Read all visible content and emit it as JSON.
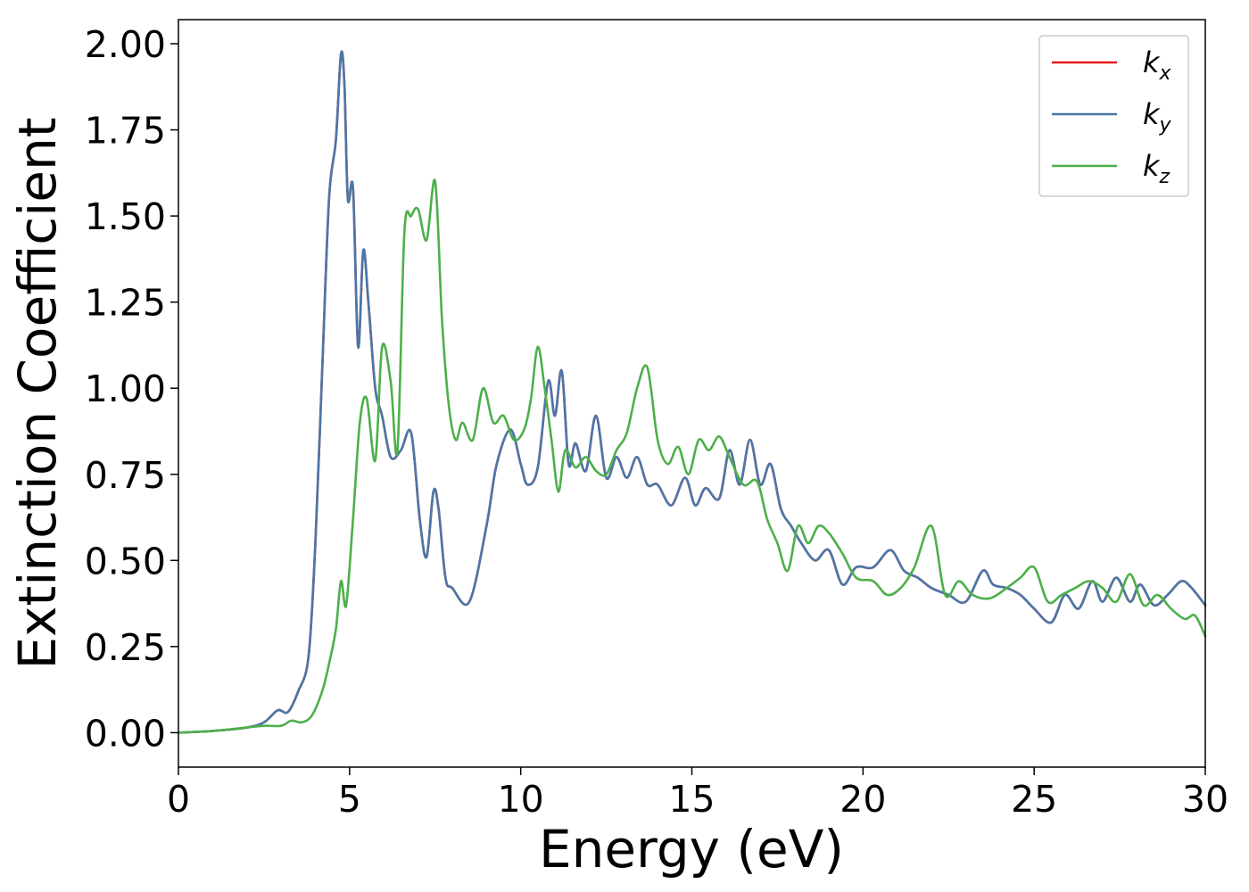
{
  "chart_data": {
    "type": "line",
    "xlabel": "Energy (eV)",
    "ylabel": "Extinction Coefficient",
    "xlim": [
      0,
      30
    ],
    "ylim": [
      -0.1,
      2.07
    ],
    "xticks": [
      0,
      5,
      10,
      15,
      20,
      25,
      30
    ],
    "xtick_labels": [
      "0",
      "5",
      "10",
      "15",
      "20",
      "25",
      "30"
    ],
    "yticks": [
      0.0,
      0.25,
      0.5,
      0.75,
      1.0,
      1.25,
      1.5,
      1.75,
      2.0
    ],
    "ytick_labels": [
      "0.00",
      "0.25",
      "0.50",
      "0.75",
      "1.00",
      "1.25",
      "1.50",
      "1.75",
      "2.00"
    ],
    "grid": false,
    "legend": "top-right",
    "series": [
      {
        "name": "k",
        "subscript": "x",
        "color": "#e41a1c",
        "x": [
          0,
          1,
          2,
          2.5,
          2.9,
          3.2,
          3.5,
          3.8,
          4.0,
          4.2,
          4.4,
          4.6,
          4.75,
          4.85,
          4.95,
          5.1,
          5.25,
          5.4,
          5.55,
          5.75,
          5.95,
          6.2,
          6.5,
          6.8,
          7.05,
          7.25,
          7.45,
          7.6,
          7.8,
          8.0,
          8.5,
          9.0,
          9.3,
          9.7,
          10.0,
          10.2,
          10.5,
          10.8,
          11.0,
          11.2,
          11.4,
          11.6,
          11.9,
          12.2,
          12.5,
          12.8,
          13.1,
          13.4,
          13.7,
          14.0,
          14.4,
          14.8,
          15.1,
          15.4,
          15.8,
          16.1,
          16.4,
          16.7,
          17.0,
          17.3,
          17.6,
          17.9,
          18.2,
          18.6,
          19.0,
          19.4,
          19.8,
          20.3,
          20.8,
          21.2,
          21.6,
          22.0,
          22.5,
          23.0,
          23.5,
          23.8,
          24.2,
          24.6,
          25.0,
          25.5,
          25.9,
          26.3,
          26.7,
          27.0,
          27.4,
          27.8,
          28.1,
          28.5,
          28.9,
          29.3,
          29.6,
          30.0
        ],
        "y": [
          0.0,
          0.005,
          0.015,
          0.03,
          0.065,
          0.06,
          0.12,
          0.22,
          0.55,
          1.05,
          1.55,
          1.72,
          1.97,
          1.88,
          1.55,
          1.58,
          1.12,
          1.4,
          1.25,
          1.0,
          0.92,
          0.8,
          0.82,
          0.87,
          0.62,
          0.51,
          0.7,
          0.65,
          0.45,
          0.42,
          0.38,
          0.6,
          0.78,
          0.88,
          0.78,
          0.72,
          0.77,
          1.02,
          0.92,
          1.05,
          0.78,
          0.84,
          0.76,
          0.92,
          0.74,
          0.8,
          0.74,
          0.8,
          0.72,
          0.72,
          0.66,
          0.74,
          0.66,
          0.71,
          0.68,
          0.82,
          0.72,
          0.85,
          0.72,
          0.78,
          0.65,
          0.6,
          0.55,
          0.5,
          0.53,
          0.43,
          0.48,
          0.48,
          0.53,
          0.47,
          0.45,
          0.42,
          0.4,
          0.38,
          0.47,
          0.43,
          0.42,
          0.4,
          0.36,
          0.32,
          0.4,
          0.36,
          0.44,
          0.38,
          0.45,
          0.38,
          0.43,
          0.37,
          0.4,
          0.44,
          0.42,
          0.37
        ]
      },
      {
        "name": "k",
        "subscript": "y",
        "color": "#4a77a8",
        "x": [
          0,
          1,
          2,
          2.5,
          2.9,
          3.2,
          3.5,
          3.8,
          4.0,
          4.2,
          4.4,
          4.6,
          4.75,
          4.85,
          4.95,
          5.1,
          5.25,
          5.4,
          5.55,
          5.75,
          5.95,
          6.2,
          6.5,
          6.8,
          7.05,
          7.25,
          7.45,
          7.6,
          7.8,
          8.0,
          8.5,
          9.0,
          9.3,
          9.7,
          10.0,
          10.2,
          10.5,
          10.8,
          11.0,
          11.2,
          11.4,
          11.6,
          11.9,
          12.2,
          12.5,
          12.8,
          13.1,
          13.4,
          13.7,
          14.0,
          14.4,
          14.8,
          15.1,
          15.4,
          15.8,
          16.1,
          16.4,
          16.7,
          17.0,
          17.3,
          17.6,
          17.9,
          18.2,
          18.6,
          19.0,
          19.4,
          19.8,
          20.3,
          20.8,
          21.2,
          21.6,
          22.0,
          22.5,
          23.0,
          23.5,
          23.8,
          24.2,
          24.6,
          25.0,
          25.5,
          25.9,
          26.3,
          26.7,
          27.0,
          27.4,
          27.8,
          28.1,
          28.5,
          28.9,
          29.3,
          29.6,
          30.0
        ],
        "y": [
          0.0,
          0.005,
          0.015,
          0.03,
          0.065,
          0.06,
          0.12,
          0.22,
          0.55,
          1.05,
          1.55,
          1.72,
          1.97,
          1.88,
          1.55,
          1.58,
          1.12,
          1.4,
          1.25,
          1.0,
          0.92,
          0.8,
          0.82,
          0.87,
          0.62,
          0.51,
          0.7,
          0.65,
          0.45,
          0.42,
          0.38,
          0.6,
          0.78,
          0.88,
          0.78,
          0.72,
          0.77,
          1.02,
          0.92,
          1.05,
          0.78,
          0.84,
          0.76,
          0.92,
          0.74,
          0.8,
          0.74,
          0.8,
          0.72,
          0.72,
          0.66,
          0.74,
          0.66,
          0.71,
          0.68,
          0.82,
          0.72,
          0.85,
          0.72,
          0.78,
          0.65,
          0.6,
          0.55,
          0.5,
          0.53,
          0.43,
          0.48,
          0.48,
          0.53,
          0.47,
          0.45,
          0.42,
          0.4,
          0.38,
          0.47,
          0.43,
          0.42,
          0.4,
          0.36,
          0.32,
          0.4,
          0.36,
          0.44,
          0.38,
          0.45,
          0.38,
          0.43,
          0.37,
          0.4,
          0.44,
          0.42,
          0.37
        ]
      },
      {
        "name": "k",
        "subscript": "z",
        "color": "#4daf4a",
        "x": [
          0,
          1,
          2,
          2.5,
          3.0,
          3.3,
          3.6,
          3.9,
          4.2,
          4.4,
          4.6,
          4.75,
          4.9,
          5.1,
          5.3,
          5.5,
          5.75,
          5.95,
          6.2,
          6.4,
          6.6,
          6.8,
          7.0,
          7.25,
          7.5,
          7.7,
          7.9,
          8.1,
          8.3,
          8.6,
          8.9,
          9.2,
          9.5,
          9.8,
          10.1,
          10.3,
          10.5,
          10.7,
          10.9,
          11.1,
          11.3,
          11.6,
          11.9,
          12.2,
          12.5,
          12.8,
          13.1,
          13.4,
          13.7,
          14.0,
          14.3,
          14.6,
          14.9,
          15.2,
          15.5,
          15.8,
          16.1,
          16.5,
          16.9,
          17.2,
          17.5,
          17.8,
          18.1,
          18.4,
          18.7,
          19.0,
          19.4,
          19.8,
          20.3,
          20.7,
          21.1,
          21.5,
          22.0,
          22.4,
          22.8,
          23.2,
          23.7,
          24.2,
          24.6,
          25.0,
          25.4,
          25.8,
          26.2,
          26.6,
          27.0,
          27.4,
          27.8,
          28.2,
          28.6,
          29.0,
          29.4,
          29.7,
          30.0
        ],
        "y": [
          0.0,
          0.005,
          0.015,
          0.02,
          0.02,
          0.035,
          0.03,
          0.05,
          0.12,
          0.2,
          0.3,
          0.44,
          0.37,
          0.62,
          0.9,
          0.97,
          0.79,
          1.12,
          1.02,
          0.82,
          1.45,
          1.5,
          1.52,
          1.43,
          1.6,
          1.2,
          0.95,
          0.85,
          0.9,
          0.85,
          1.0,
          0.9,
          0.92,
          0.85,
          0.88,
          0.97,
          1.12,
          1.0,
          0.85,
          0.7,
          0.82,
          0.77,
          0.8,
          0.76,
          0.75,
          0.82,
          0.87,
          1.0,
          1.06,
          0.85,
          0.78,
          0.83,
          0.75,
          0.85,
          0.82,
          0.86,
          0.8,
          0.72,
          0.73,
          0.62,
          0.55,
          0.47,
          0.6,
          0.55,
          0.6,
          0.58,
          0.52,
          0.45,
          0.44,
          0.4,
          0.42,
          0.48,
          0.6,
          0.4,
          0.44,
          0.4,
          0.39,
          0.42,
          0.45,
          0.48,
          0.38,
          0.4,
          0.42,
          0.44,
          0.42,
          0.38,
          0.46,
          0.37,
          0.4,
          0.36,
          0.33,
          0.34,
          0.28
        ]
      }
    ]
  }
}
